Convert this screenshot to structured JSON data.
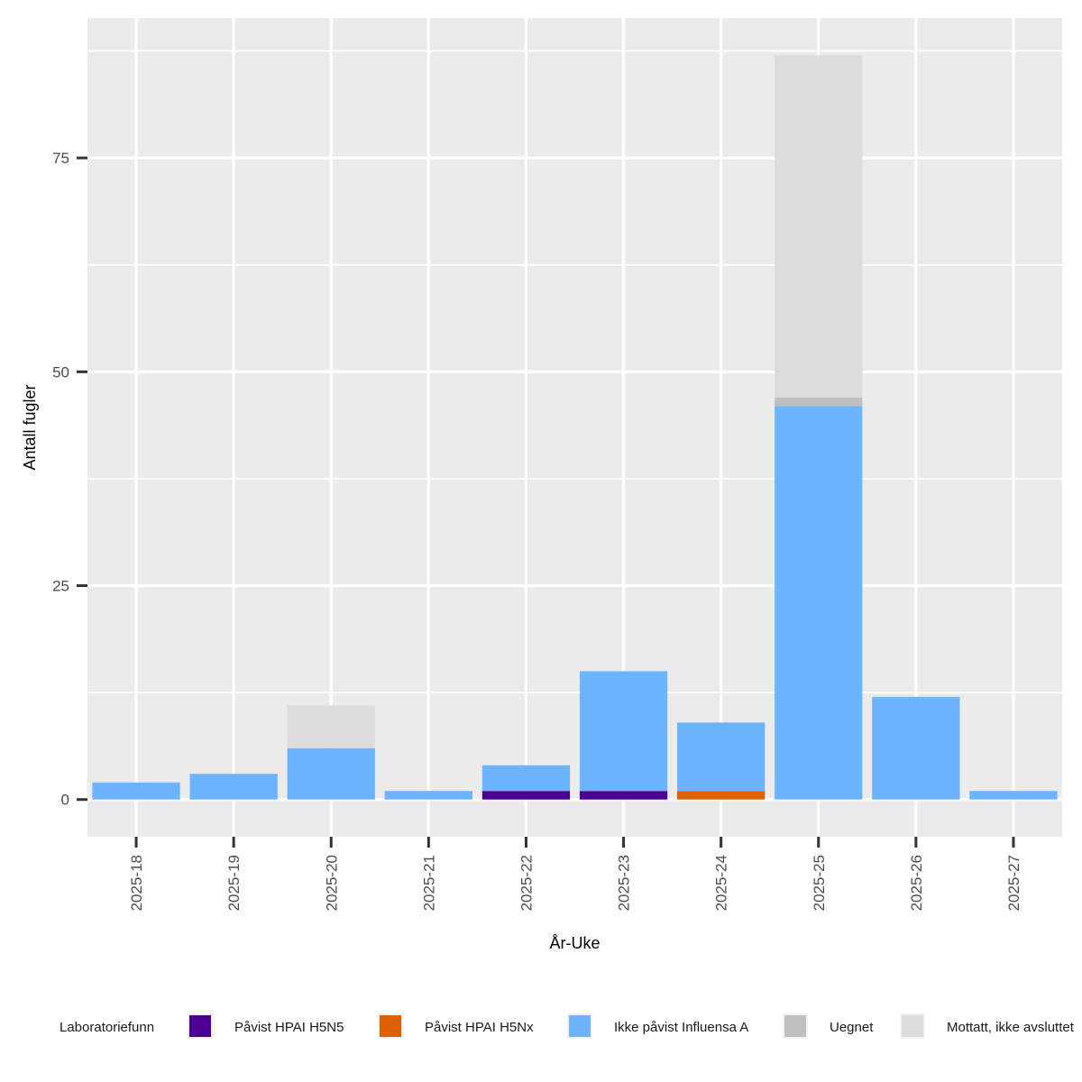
{
  "chart_data": {
    "type": "bar",
    "stacked": true,
    "xlabel": "År-Uke",
    "ylabel": "Antall fugler",
    "categories": [
      "2025-18",
      "2025-19",
      "2025-20",
      "2025-21",
      "2025-22",
      "2025-23",
      "2025-24",
      "2025-25",
      "2025-26",
      "2025-27"
    ],
    "series": [
      {
        "name": "Påvist HPAI H5N5",
        "color": "#4B0092",
        "values": [
          0,
          0,
          0,
          0,
          1,
          1,
          0,
          0,
          0,
          0
        ]
      },
      {
        "name": "Påvist HPAI H5Nx",
        "color": "#DC6101",
        "values": [
          0,
          0,
          0,
          0,
          0,
          0,
          1,
          0,
          0,
          0
        ]
      },
      {
        "name": "Ikke påvist Influensa A",
        "color": "#6CB4FE",
        "values": [
          2,
          3,
          6,
          1,
          3,
          14,
          8,
          46,
          12,
          1
        ]
      },
      {
        "name": "Uegnet",
        "color": "#BFBFBF",
        "values": [
          0,
          0,
          0,
          0,
          0,
          0,
          0,
          1,
          0,
          0
        ]
      },
      {
        "name": "Mottatt, ikke avsluttet",
        "color": "#DCDCDC",
        "values": [
          0,
          0,
          5,
          0,
          0,
          0,
          0,
          40,
          0,
          0
        ]
      }
    ],
    "ylim": [
      -4.35,
      91.35
    ],
    "yticks": [
      0,
      25,
      50,
      75
    ],
    "grid": true,
    "legend": {
      "title": "Laboratoriefunn",
      "position": "bottom"
    }
  }
}
